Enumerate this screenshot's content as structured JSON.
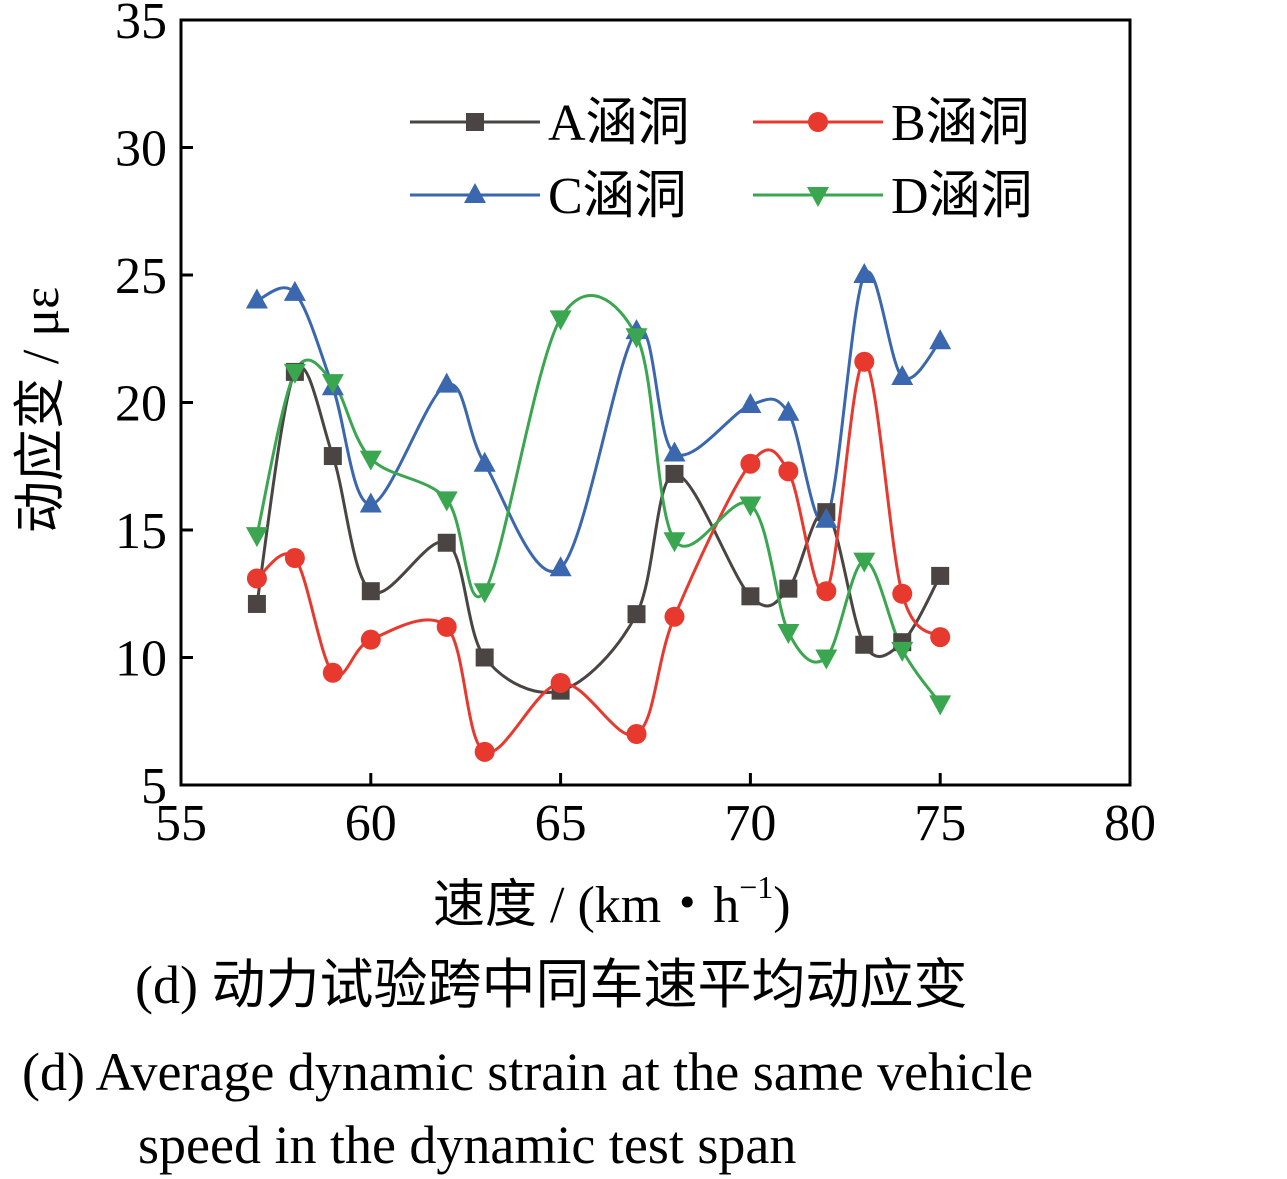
{
  "chart_data": {
    "type": "line",
    "xlabel": "速度 / (km・h",
    "xlabel_sup": "−1",
    "xlabel_close": ")",
    "ylabel": "动应变 / με",
    "xlim": [
      55,
      80
    ],
    "ylim": [
      5,
      35
    ],
    "xticks": [
      55,
      60,
      65,
      70,
      75,
      80
    ],
    "yticks": [
      5,
      10,
      15,
      20,
      25,
      30,
      35
    ],
    "grid": false,
    "legend_position": "top-right",
    "x": [
      57,
      58,
      59,
      60,
      62,
      63,
      65,
      67,
      68,
      70,
      71,
      72,
      73,
      74,
      75
    ],
    "series": [
      {
        "name": "A涵洞",
        "color": "#4a4542",
        "marker": "square",
        "values": [
          12.1,
          21.2,
          17.9,
          12.6,
          14.5,
          10.0,
          8.7,
          11.7,
          17.2,
          12.4,
          12.7,
          15.7,
          10.5,
          10.6,
          13.2
        ]
      },
      {
        "name": "B涵洞",
        "color": "#e8392f",
        "marker": "circle",
        "values": [
          13.1,
          13.9,
          9.4,
          10.7,
          11.2,
          6.3,
          9.0,
          7.0,
          11.6,
          17.6,
          17.3,
          12.6,
          21.6,
          12.5,
          10.8
        ]
      },
      {
        "name": "C涵洞",
        "color": "#3a67ae",
        "marker": "triangle-up",
        "values": [
          24.0,
          24.3,
          20.6,
          16.0,
          20.7,
          17.6,
          13.5,
          22.8,
          18.0,
          19.9,
          19.6,
          15.4,
          25.0,
          21.0,
          22.4
        ]
      },
      {
        "name": "D涵洞",
        "color": "#3aa64f",
        "marker": "triangle-down",
        "values": [
          14.8,
          21.2,
          20.8,
          17.8,
          16.2,
          12.6,
          23.3,
          22.6,
          14.6,
          16.0,
          11.0,
          10.0,
          13.8,
          10.3,
          8.2
        ]
      }
    ]
  },
  "captions": {
    "cn": "(d)  动力试验跨中同车速平均动应变",
    "en_line1": "(d)  Average dynamic strain at the same vehicle",
    "en_line2": "speed in the dynamic test span"
  }
}
